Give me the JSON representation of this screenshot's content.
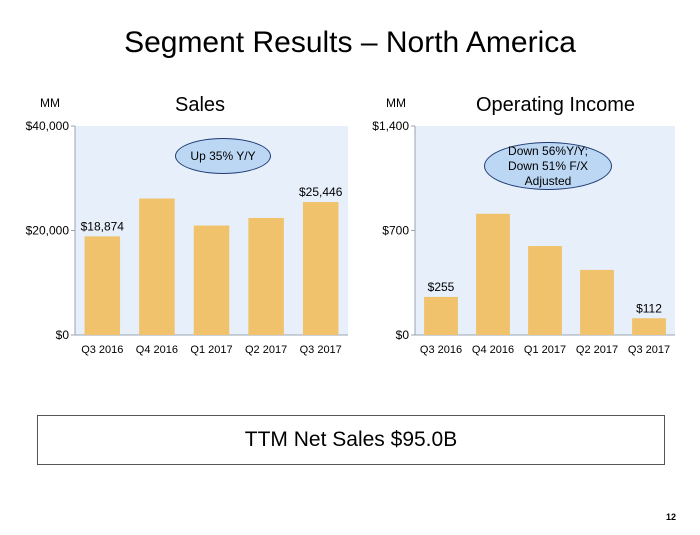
{
  "slide": {
    "title": "Segment Results – North America",
    "ttm": "TTM Net Sales $95.0B",
    "page": "12"
  },
  "chart_data": [
    {
      "type": "bar",
      "title": "Sales",
      "unit": "MM",
      "categories": [
        "Q3 2016",
        "Q4 2016",
        "Q1 2017",
        "Q2 2017",
        "Q3 2017"
      ],
      "values": [
        18874,
        26120,
        20950,
        22400,
        25446
      ],
      "data_labels": [
        "$18,874",
        "",
        "",
        "",
        "$25,446"
      ],
      "ylim": [
        0,
        40000
      ],
      "yticks": [
        0,
        20000,
        40000
      ],
      "ytick_labels": [
        "$0",
        "$20,000",
        "$40,000"
      ],
      "callout": "Up 35% Y/Y",
      "bar_color": "#f0c26b",
      "plot_bg": "#e6effa",
      "grid": false
    },
    {
      "type": "bar",
      "title": "Operating Income",
      "unit": "MM",
      "categories": [
        "Q3 2016",
        "Q4 2016",
        "Q1 2017",
        "Q2 2017",
        "Q3 2017"
      ],
      "values": [
        255,
        812,
        596,
        436,
        112
      ],
      "data_labels": [
        "$255",
        "",
        "",
        "",
        "$112"
      ],
      "ylim": [
        0,
        1400
      ],
      "yticks": [
        0,
        700,
        1400
      ],
      "ytick_labels": [
        "$0",
        "$700",
        "$1,400"
      ],
      "callout": "Down 56%Y/Y; Down 51% F/X Adjusted",
      "bar_color": "#f0c26b",
      "plot_bg": "#e6effa",
      "grid": false
    }
  ]
}
